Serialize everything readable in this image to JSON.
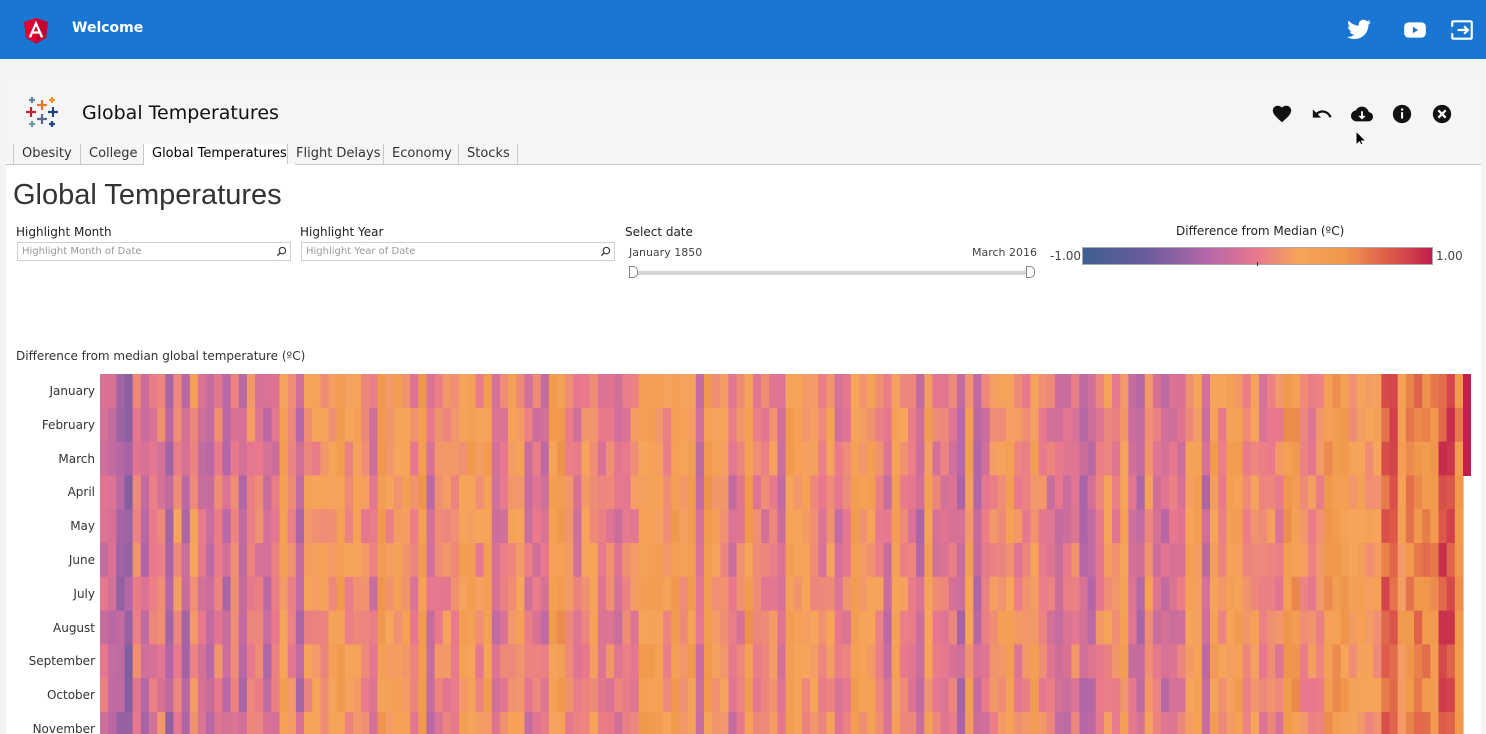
{
  "app": {
    "title": "Welcome"
  },
  "topbar_icons": [
    "twitter-icon",
    "youtube-icon",
    "sign-out-icon"
  ],
  "viz": {
    "title": "Global Temperatures",
    "actions": [
      "heart-icon",
      "undo-icon",
      "cloud-download-icon",
      "info-icon",
      "close-icon"
    ]
  },
  "tabs": [
    {
      "label": "Obesity",
      "active": false
    },
    {
      "label": "College",
      "active": false
    },
    {
      "label": "Global Temperatures",
      "active": true
    },
    {
      "label": "Flight Delays",
      "active": false
    },
    {
      "label": "Economy",
      "active": false
    },
    {
      "label": "Stocks",
      "active": false
    }
  ],
  "dashboard": {
    "title": "Global Temperatures",
    "filters": {
      "month": {
        "label": "Highlight Month",
        "placeholder": "Highlight Month of Date"
      },
      "year": {
        "label": "Highlight Year",
        "placeholder": "Highlight Year of Date"
      },
      "date": {
        "label": "Select date",
        "start": "January 1850",
        "end": "March 2016"
      }
    },
    "legend": {
      "title": "Difference from Median (ºC)",
      "min_label": "-1.00",
      "max_label": "1.00"
    }
  },
  "chart_data": {
    "type": "heatmap",
    "title": "Difference from median global temperature (ºC)",
    "y_categories": [
      "January",
      "February",
      "March",
      "April",
      "May",
      "June",
      "July",
      "August",
      "September",
      "October",
      "November"
    ],
    "x_range": [
      "January 1850",
      "March 2016"
    ],
    "color_scale": {
      "min": -1.0,
      "max": 1.0,
      "colors": [
        "#3e5f8f",
        "#b266a8",
        "#e9788d",
        "#f6a55a",
        "#c11f4d"
      ]
    }
  },
  "colors": {
    "accent": "#1976d2",
    "angular_red": "#dd0031"
  }
}
